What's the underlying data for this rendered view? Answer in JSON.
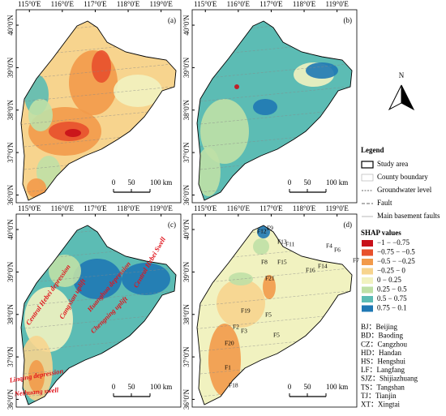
{
  "panels": [
    {
      "label": "(a)"
    },
    {
      "label": "(b)"
    },
    {
      "label": "(c)"
    },
    {
      "label": "(d)"
    }
  ],
  "lon_ticks": [
    "115°0'E",
    "116°0'E",
    "117°0'E",
    "118°0'E",
    "119°0'E"
  ],
  "lat_ticks": [
    "40°0'N",
    "39°0'N",
    "38°0'N",
    "37°0'N",
    "36°0'N"
  ],
  "scale_bar": [
    "0",
    "50",
    "100 km"
  ],
  "north": "N",
  "legend": {
    "title": "Legend",
    "items": [
      "Study area",
      "County boundary",
      "Groundwater level",
      "Fault",
      "Main basement faults"
    ]
  },
  "shap": {
    "title": "SHAP values",
    "classes": [
      {
        "label": "−1 − −0.75",
        "color": "#c8101a"
      },
      {
        "label": "−0.75 − −0.5",
        "color": "#e8502c"
      },
      {
        "label": "−0.5 − −0.25",
        "color": "#f29a4a"
      },
      {
        "label": "−0.25 − 0",
        "color": "#f7d48e"
      },
      {
        "label": "0 − 0.25",
        "color": "#f1f2c0"
      },
      {
        "label": "0.25 − 0.5",
        "color": "#bfe0a6"
      },
      {
        "label": "0.5 − 0.75",
        "color": "#5cbcb4"
      },
      {
        "label": "0.75 − 0.1",
        "color": "#1f78b4"
      }
    ]
  },
  "abbreviations": [
    "BJ：Beijing",
    "BD：Baoding",
    "CZ：Cangzhou",
    "HD：Handan",
    "HS：Hengshui",
    "LF：Langfang",
    "SJZ：Shijiazhuang",
    "TS：Tangshan",
    "TJ：Tianjin",
    "XT：Xingtai"
  ],
  "annotations": [
    "Central Hebei depression",
    "Cangxian uplift",
    "Huanghua depression",
    "Chengning uplift",
    "Central Hebei Swell",
    "Linqing depression",
    "Neihuang swell"
  ],
  "fault_labels": [
    "F12",
    "F9",
    "F13",
    "F11",
    "F4",
    "F6",
    "F7",
    "F8",
    "F15",
    "F16",
    "F14",
    "F21",
    "F19",
    "F2",
    "F3",
    "F5",
    "F5",
    "F20",
    "F1",
    "F18"
  ]
}
